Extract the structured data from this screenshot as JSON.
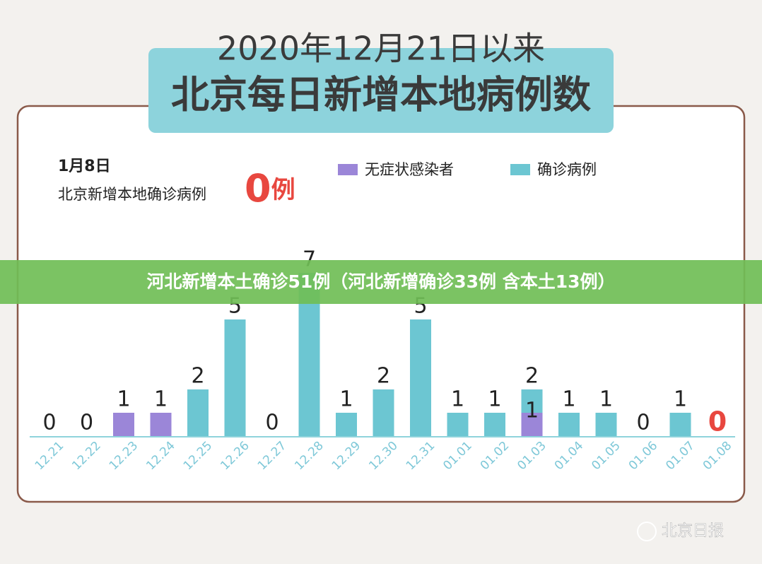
{
  "chart_data": {
    "type": "stacked_bar",
    "title": "2020年12月21日以来",
    "subtitle": "北京每日新增本地病例数",
    "date_note": "1月8日",
    "count_text": "北京新增本地确诊病例",
    "count": 0,
    "count_unit": "例",
    "categories": [
      "12.21",
      "12.22",
      "12.23",
      "12.24",
      "12.25",
      "12.26",
      "12.27",
      "12.28",
      "12.29",
      "12.30",
      "12.31",
      "01.01",
      "01.02",
      "01.03",
      "01.04",
      "01.05",
      "01.06",
      "01.07",
      "01.08"
    ],
    "series": [
      {
        "name": "无症状感染者",
        "color": "#9b86d8",
        "values": [
          0,
          0,
          1,
          1,
          0,
          0,
          0,
          0,
          0,
          0,
          0,
          0,
          0,
          1,
          0,
          0,
          0,
          0,
          0
        ]
      },
      {
        "name": "确诊病例",
        "color": "#6cc6d2",
        "values": [
          0,
          0,
          0,
          0,
          2,
          5,
          0,
          7,
          1,
          2,
          5,
          1,
          1,
          1,
          1,
          1,
          0,
          1,
          0
        ]
      }
    ],
    "totals": [
      0,
      0,
      1,
      1,
      2,
      5,
      0,
      7,
      1,
      2,
      5,
      1,
      1,
      2,
      1,
      1,
      0,
      1,
      0
    ],
    "highlight_color": "#e8473f",
    "banner": "河北新增本土确诊51例（河北新增确诊33例 含本土13例）",
    "watermark": "北京日报"
  }
}
